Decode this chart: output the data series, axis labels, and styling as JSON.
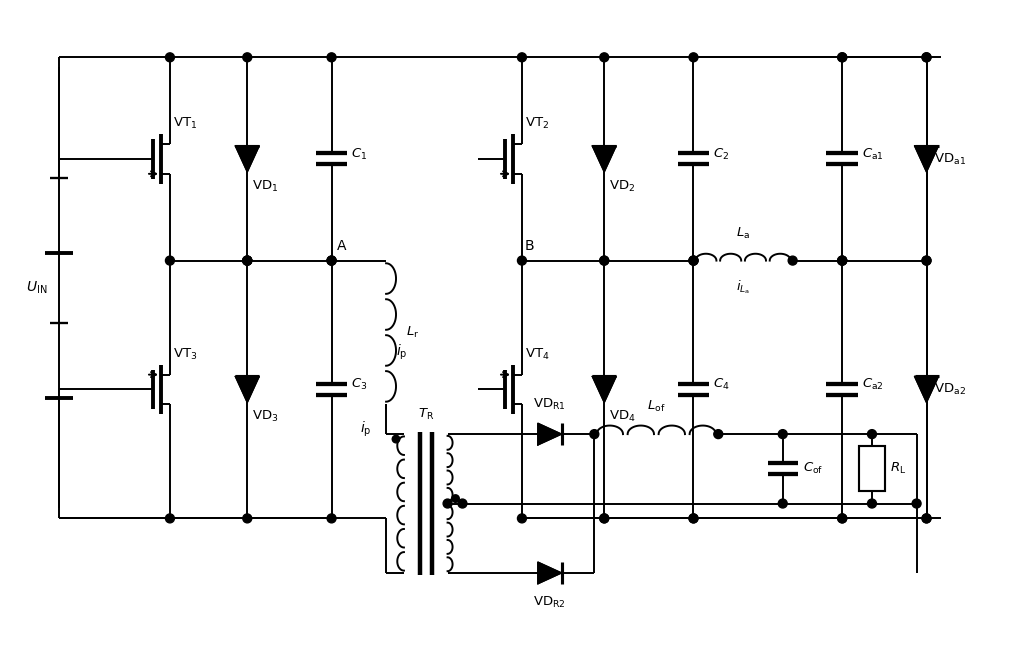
{
  "bg_color": "#ffffff",
  "line_color": "#000000",
  "lw": 1.4,
  "figsize": [
    10.3,
    6.6
  ],
  "dpi": 100,
  "xlim": [
    0,
    103
  ],
  "ylim": [
    0,
    66
  ]
}
